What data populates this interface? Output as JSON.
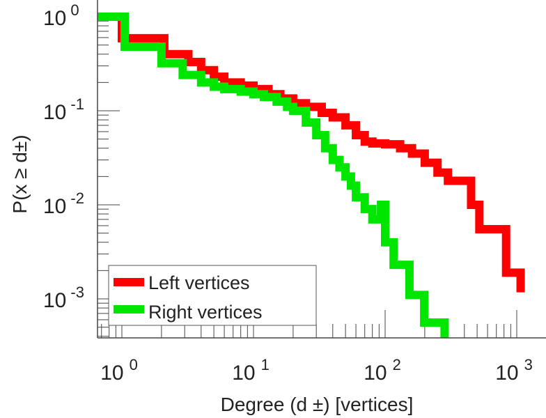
{
  "chart_data": {
    "type": "line",
    "step": true,
    "xscale": "log",
    "yscale": "log",
    "xlim": [
      0.65,
      1650
    ],
    "ylim": [
      0.0004,
      1.5
    ],
    "xlabel": "Degree (d ±) [vertices]",
    "ylabel": "P(x ≥ d±)",
    "xticks": [
      {
        "base": "10",
        "exp": "0",
        "value": 1
      },
      {
        "base": "10",
        "exp": "1",
        "value": 10
      },
      {
        "base": "10",
        "exp": "2",
        "value": 100
      },
      {
        "base": "10",
        "exp": "3",
        "value": 1000
      }
    ],
    "yticks": [
      {
        "base": "10",
        "exp": "0",
        "value": 1
      },
      {
        "base": "10",
        "exp": "-1",
        "value": 0.1
      },
      {
        "base": "10",
        "exp": "-2",
        "value": 0.01
      },
      {
        "base": "10",
        "exp": "-3",
        "value": 0.001
      }
    ],
    "legend": "bottom-left",
    "series": [
      {
        "name": "Left vertices",
        "color": "#ff0000",
        "x": [
          0.65,
          1,
          2.1,
          3.2,
          4,
          5,
          6,
          8,
          10,
          13,
          16,
          20,
          25,
          33,
          40,
          50,
          60,
          70,
          80,
          100,
          130,
          160,
          200,
          250,
          300,
          450,
          520,
          830,
          1070
        ],
        "y": [
          1,
          0.59,
          0.4,
          0.33,
          0.27,
          0.23,
          0.2,
          0.185,
          0.17,
          0.15,
          0.135,
          0.12,
          0.11,
          0.095,
          0.085,
          0.07,
          0.055,
          0.047,
          0.045,
          0.044,
          0.04,
          0.035,
          0.028,
          0.022,
          0.018,
          0.01,
          0.0055,
          0.0019,
          0.0013
        ]
      },
      {
        "name": "Right vertices",
        "color": "#00e600",
        "x": [
          0.65,
          1.05,
          2,
          2.9,
          4,
          5,
          6,
          8,
          10,
          12,
          15,
          18,
          20,
          25,
          30,
          35,
          40,
          45,
          50,
          55,
          60,
          70,
          80,
          93,
          100,
          116,
          153,
          198,
          283
        ],
        "y": [
          1,
          0.48,
          0.32,
          0.24,
          0.2,
          0.18,
          0.17,
          0.16,
          0.15,
          0.14,
          0.125,
          0.11,
          0.1,
          0.075,
          0.055,
          0.04,
          0.03,
          0.025,
          0.02,
          0.016,
          0.012,
          0.009,
          0.007,
          0.01,
          0.004,
          0.0023,
          0.0011,
          0.00056,
          0.0003
        ]
      }
    ]
  }
}
